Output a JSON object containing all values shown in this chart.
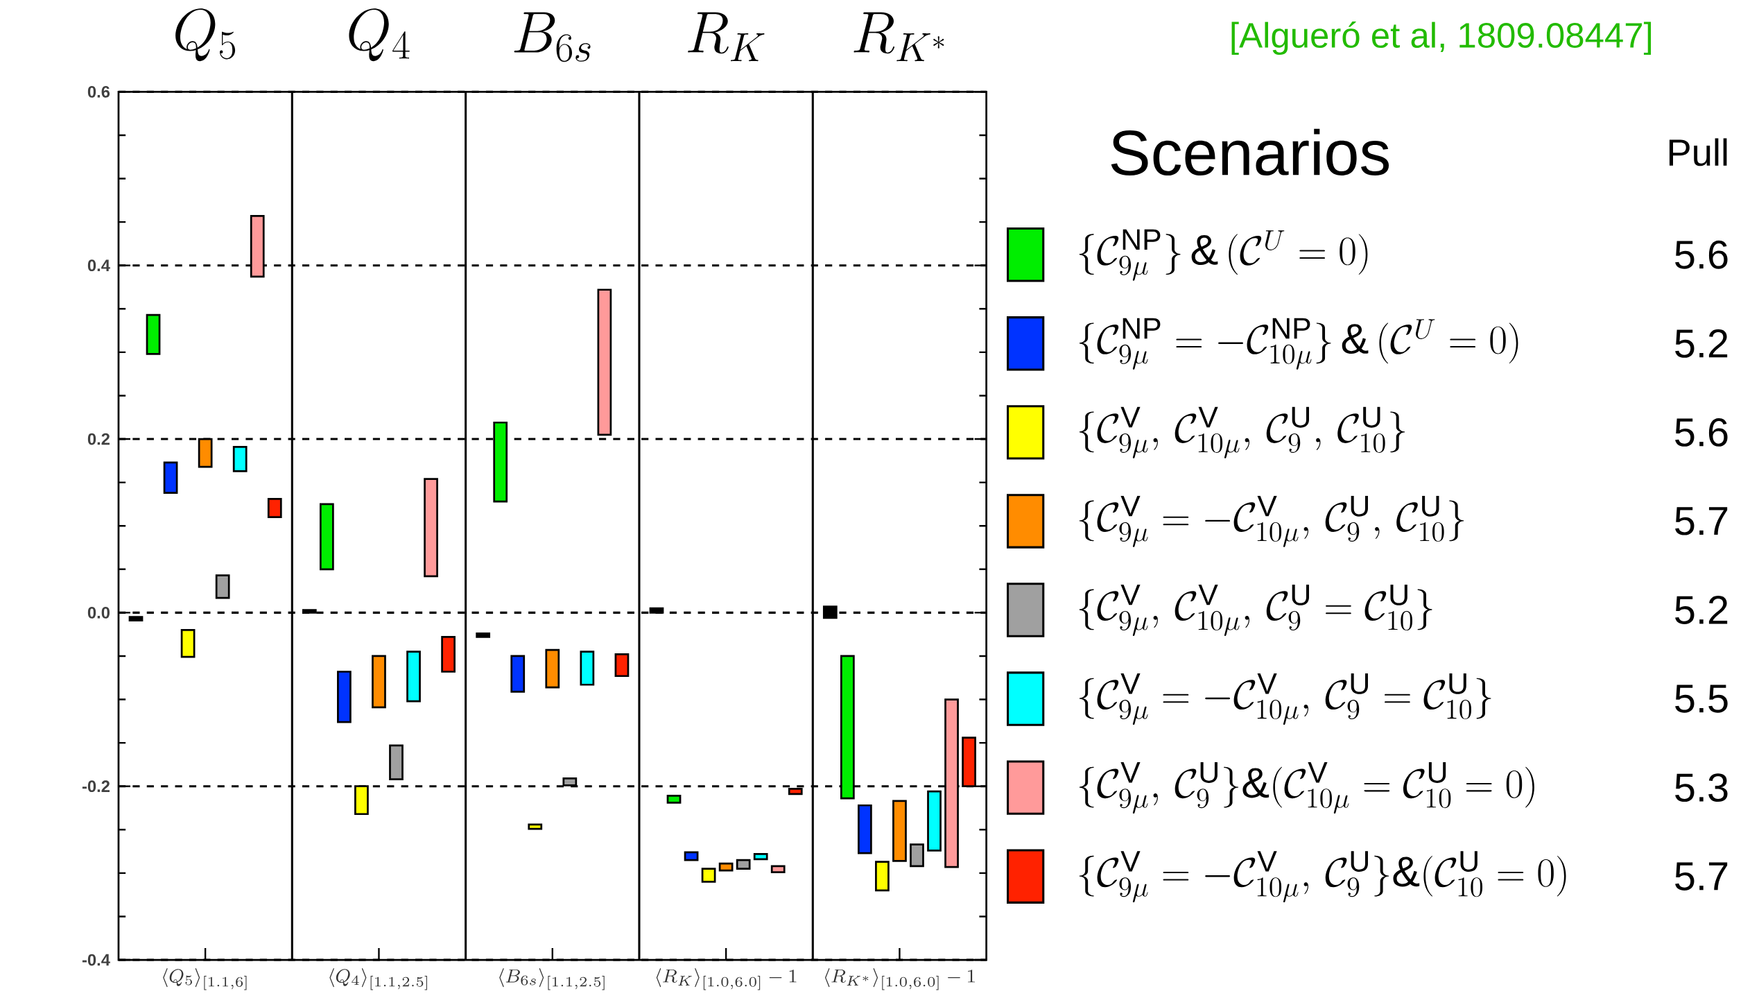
{
  "chart_data": {
    "type": "bar",
    "categories": [
      "\\langle Q_5\\rangle_{[1.1,6]}",
      "\\langle Q_4\\rangle_{[1.1,2.5]}",
      "\\langle B_{6s}\\rangle_{[1.1,2.5]}",
      "\\langle R_K\\rangle_{[1.0,6.0]}-1",
      "\\langle R_{K^*}\\rangle_{[1.0,6.0]}-1"
    ],
    "series": [
      {
        "color": "#000000",
        "base": [
          -0.009,
          0.0,
          -0.028,
          0.0,
          -0.006
        ],
        "values": [
          0.004,
          0.003,
          0.004,
          0.005,
          0.013
        ]
      },
      {
        "name": "\\{\\mathcal{C}_{9\\mu}^{\\rm NP}\\}\\,\\&\\,(\\mathcal{C}^{U}=0)",
        "color": "#00ee00",
        "base": [
          0.298,
          0.05,
          0.128,
          -0.219,
          -0.214
        ],
        "values": [
          0.045,
          0.075,
          0.091,
          0.008,
          0.164
        ]
      },
      {
        "name": "\\{\\mathcal{C}_{9\\mu}^{\\rm NP}=-\\mathcal{C}_{10\\mu}^{\\rm NP}\\}\\,\\&\\,(\\mathcal{C}^{U}=0)",
        "color": "#0033ff",
        "base": [
          0.138,
          -0.126,
          -0.091,
          -0.285,
          -0.277
        ],
        "values": [
          0.035,
          0.058,
          0.041,
          0.009,
          0.055
        ]
      },
      {
        "name": "\\{\\mathcal{C}_{9\\mu}^{\\rm V},\\,\\mathcal{C}_{10\\mu}^{\\rm V},\\,\\mathcal{C}_{9}^{\\rm U},\\,\\mathcal{C}_{10}^{\\rm U}\\}",
        "color": "#ffff00",
        "base": [
          -0.051,
          -0.232,
          -0.249,
          -0.31,
          -0.32
        ],
        "values": [
          0.031,
          0.032,
          0.005,
          0.015,
          0.033
        ]
      },
      {
        "name": "\\{\\mathcal{C}_{9\\mu}^{\\rm V}=-\\mathcal{C}_{10\\mu}^{\\rm V},\\,\\mathcal{C}_{9}^{\\rm U},\\,\\mathcal{C}_{10}^{\\rm U}\\}",
        "color": "#ff8c00",
        "base": [
          0.168,
          -0.109,
          -0.086,
          -0.297,
          -0.286
        ],
        "values": [
          0.032,
          0.059,
          0.043,
          0.008,
          0.069
        ]
      },
      {
        "name": "\\{\\mathcal{C}_{9\\mu}^{\\rm V},\\,\\mathcal{C}_{10\\mu}^{\\rm V},\\,\\mathcal{C}_{9}^{\\rm U}=\\mathcal{C}_{10}^{\\rm U}\\}",
        "color": "#a0a0a0",
        "base": [
          0.017,
          -0.192,
          -0.199,
          -0.295,
          -0.292
        ],
        "values": [
          0.026,
          0.039,
          0.008,
          0.01,
          0.025
        ]
      },
      {
        "name": "\\{\\mathcal{C}_{9\\mu}^{\\rm V}=-\\mathcal{C}_{10\\mu}^{\\rm V},\\,\\mathcal{C}_{9}^{\\rm U}=\\mathcal{C}_{10}^{\\rm U}\\}",
        "color": "#00ffff",
        "base": [
          0.163,
          -0.102,
          -0.083,
          -0.284,
          -0.274
        ],
        "values": [
          0.028,
          0.057,
          0.038,
          0.006,
          0.068
        ]
      },
      {
        "name": "\\{\\mathcal{C}_{9\\mu}^{\\rm V},\\,\\mathcal{C}_{9}^{\\rm U}\\}\\&(\\mathcal{C}_{10\\mu}^{\\rm V}=\\mathcal{C}_{10}^{\\rm U}=0)",
        "color": "#ff9a9a",
        "base": [
          0.387,
          0.042,
          0.205,
          -0.299,
          -0.293
        ],
        "values": [
          0.07,
          0.112,
          0.167,
          0.007,
          0.193
        ]
      },
      {
        "name": "\\{\\mathcal{C}_{9\\mu}^{\\rm V}=-\\mathcal{C}_{10\\mu}^{\\rm V},\\,\\mathcal{C}_{9}^{\\rm U}\\}\\&(\\mathcal{C}_{10}^{\\rm U}=0)",
        "color": "#ff2200",
        "base": [
          0.11,
          -0.068,
          -0.073,
          -0.209,
          -0.2
        ],
        "values": [
          0.021,
          0.04,
          0.025,
          0.006,
          0.056
        ]
      }
    ],
    "ylim": [
      -0.4,
      0.6
    ],
    "yticks": [
      {
        "value": -0.4,
        "label": "-0.4"
      },
      {
        "value": -0.2,
        "label": "-0.2"
      },
      {
        "value": 0,
        "label": "0.0"
      },
      {
        "value": 0.2,
        "label": "0.2"
      },
      {
        "value": 0.4,
        "label": "0.4"
      },
      {
        "value": 0.6,
        "label": "0.6"
      }
    ],
    "grid": "y",
    "legend": "right",
    "legend_title": "Scenarios",
    "annotations": [
      "[Algueró et al, 1809.08447]",
      "Q_5",
      "Q_4",
      "B_{6s}",
      "R_K",
      "R_{K^*}",
      "Pull",
      "5.6",
      "5.2",
      "5.6",
      "5.7",
      "5.2",
      "5.5",
      "5.3",
      "5.7"
    ]
  }
}
